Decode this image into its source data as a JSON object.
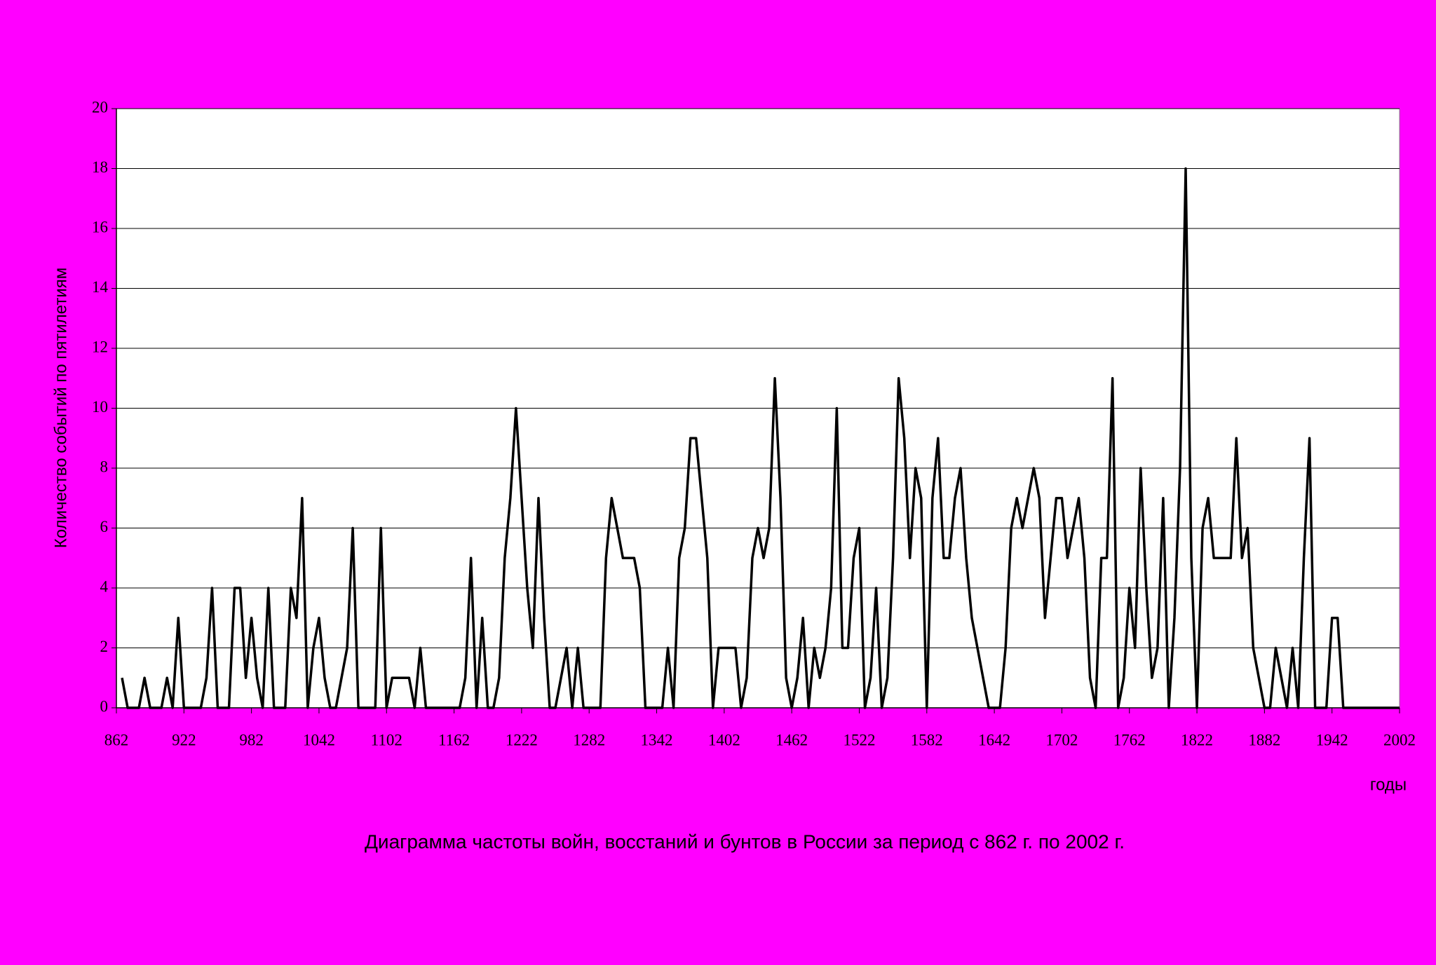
{
  "chart_data": {
    "type": "line",
    "title": "Диаграмма частоты войн, восстаний и бунтов в России за период с 862 г. по 2002 г.",
    "x_label": "годы",
    "y_label": "Количество событий по пятилетиям",
    "x": [
      867,
      872,
      877,
      882,
      887,
      892,
      897,
      902,
      907,
      912,
      917,
      922,
      927,
      932,
      937,
      942,
      947,
      952,
      957,
      962,
      967,
      972,
      977,
      982,
      987,
      992,
      997,
      1002,
      1007,
      1012,
      1017,
      1022,
      1027,
      1032,
      1037,
      1042,
      1047,
      1052,
      1057,
      1062,
      1067,
      1072,
      1077,
      1082,
      1087,
      1092,
      1097,
      1102,
      1107,
      1112,
      1117,
      1122,
      1127,
      1132,
      1137,
      1142,
      1147,
      1152,
      1157,
      1162,
      1167,
      1172,
      1177,
      1182,
      1187,
      1192,
      1197,
      1202,
      1207,
      1212,
      1217,
      1222,
      1227,
      1232,
      1237,
      1242,
      1247,
      1252,
      1257,
      1262,
      1267,
      1272,
      1277,
      1282,
      1287,
      1292,
      1297,
      1302,
      1307,
      1312,
      1317,
      1322,
      1327,
      1332,
      1337,
      1342,
      1347,
      1352,
      1357,
      1362,
      1367,
      1372,
      1377,
      1382,
      1387,
      1392,
      1397,
      1402,
      1407,
      1412,
      1417,
      1422,
      1427,
      1432,
      1437,
      1442,
      1447,
      1452,
      1457,
      1462,
      1467,
      1472,
      1477,
      1482,
      1487,
      1492,
      1497,
      1502,
      1507,
      1512,
      1517,
      1522,
      1527,
      1532,
      1537,
      1542,
      1547,
      1552,
      1557,
      1562,
      1567,
      1572,
      1577,
      1582,
      1587,
      1592,
      1597,
      1602,
      1607,
      1612,
      1617,
      1622,
      1627,
      1632,
      1637,
      1642,
      1647,
      1652,
      1657,
      1662,
      1667,
      1672,
      1677,
      1682,
      1687,
      1692,
      1697,
      1702,
      1707,
      1712,
      1717,
      1722,
      1727,
      1732,
      1737,
      1742,
      1747,
      1752,
      1757,
      1762,
      1767,
      1772,
      1777,
      1782,
      1787,
      1792,
      1797,
      1802,
      1807,
      1812,
      1817,
      1822,
      1827,
      1832,
      1837,
      1842,
      1847,
      1852,
      1857,
      1862,
      1867,
      1872,
      1877,
      1882,
      1887,
      1892,
      1897,
      1902,
      1907,
      1912,
      1917,
      1922,
      1927,
      1932,
      1937,
      1942,
      1947,
      1952,
      1957,
      1962,
      1967,
      1972,
      1977,
      1982,
      1987,
      1992,
      1997,
      2002
    ],
    "values": [
      1,
      0,
      0,
      0,
      1,
      0,
      0,
      0,
      1,
      0,
      3,
      0,
      0,
      0,
      0,
      1,
      4,
      0,
      0,
      0,
      4,
      4,
      1,
      3,
      1,
      0,
      4,
      0,
      0,
      0,
      4,
      3,
      7,
      0,
      2,
      3,
      1,
      0,
      0,
      1,
      2,
      6,
      0,
      0,
      0,
      0,
      6,
      0,
      1,
      1,
      1,
      1,
      0,
      2,
      0,
      0,
      0,
      0,
      0,
      0,
      0,
      1,
      5,
      0,
      3,
      0,
      0,
      1,
      5,
      7,
      10,
      7,
      4,
      2,
      7,
      3,
      0,
      0,
      1,
      2,
      0,
      2,
      0,
      0,
      0,
      0,
      5,
      7,
      6,
      5,
      5,
      5,
      4,
      0,
      0,
      0,
      0,
      2,
      0,
      5,
      6,
      9,
      9,
      7,
      5,
      0,
      2,
      2,
      2,
      2,
      0,
      1,
      5,
      6,
      5,
      6,
      11,
      7,
      1,
      0,
      1,
      3,
      0,
      2,
      1,
      2,
      4,
      10,
      2,
      2,
      5,
      6,
      0,
      1,
      4,
      0,
      1,
      5,
      11,
      9,
      5,
      8,
      7,
      0,
      7,
      9,
      5,
      5,
      7,
      8,
      5,
      3,
      2,
      1,
      0,
      0,
      0,
      2,
      6,
      7,
      6,
      7,
      8,
      7,
      3,
      5,
      7,
      7,
      5,
      6,
      7,
      5,
      1,
      0,
      5,
      5,
      11,
      0,
      1,
      4,
      2,
      8,
      4,
      1,
      2,
      7,
      0,
      3,
      8,
      18,
      5,
      0,
      6,
      7,
      5,
      5,
      5,
      5,
      9,
      5,
      6,
      2,
      1,
      0,
      0,
      2,
      1,
      0,
      2,
      0,
      5,
      9,
      0,
      0,
      0,
      3,
      3,
      0,
      0,
      0,
      0,
      0,
      0,
      0,
      0,
      0,
      0,
      0
    ],
    "color": "#000000",
    "xlim": [
      862,
      2002
    ],
    "xticks": [
      862,
      922,
      982,
      1042,
      1102,
      1162,
      1222,
      1282,
      1342,
      1402,
      1462,
      1522,
      1582,
      1642,
      1702,
      1762,
      1822,
      1882,
      1942,
      2002
    ],
    "ylim": [
      0,
      20
    ],
    "yticks": [
      0,
      2,
      4,
      6,
      8,
      10,
      12,
      14,
      16,
      18,
      20
    ],
    "grid": true
  }
}
